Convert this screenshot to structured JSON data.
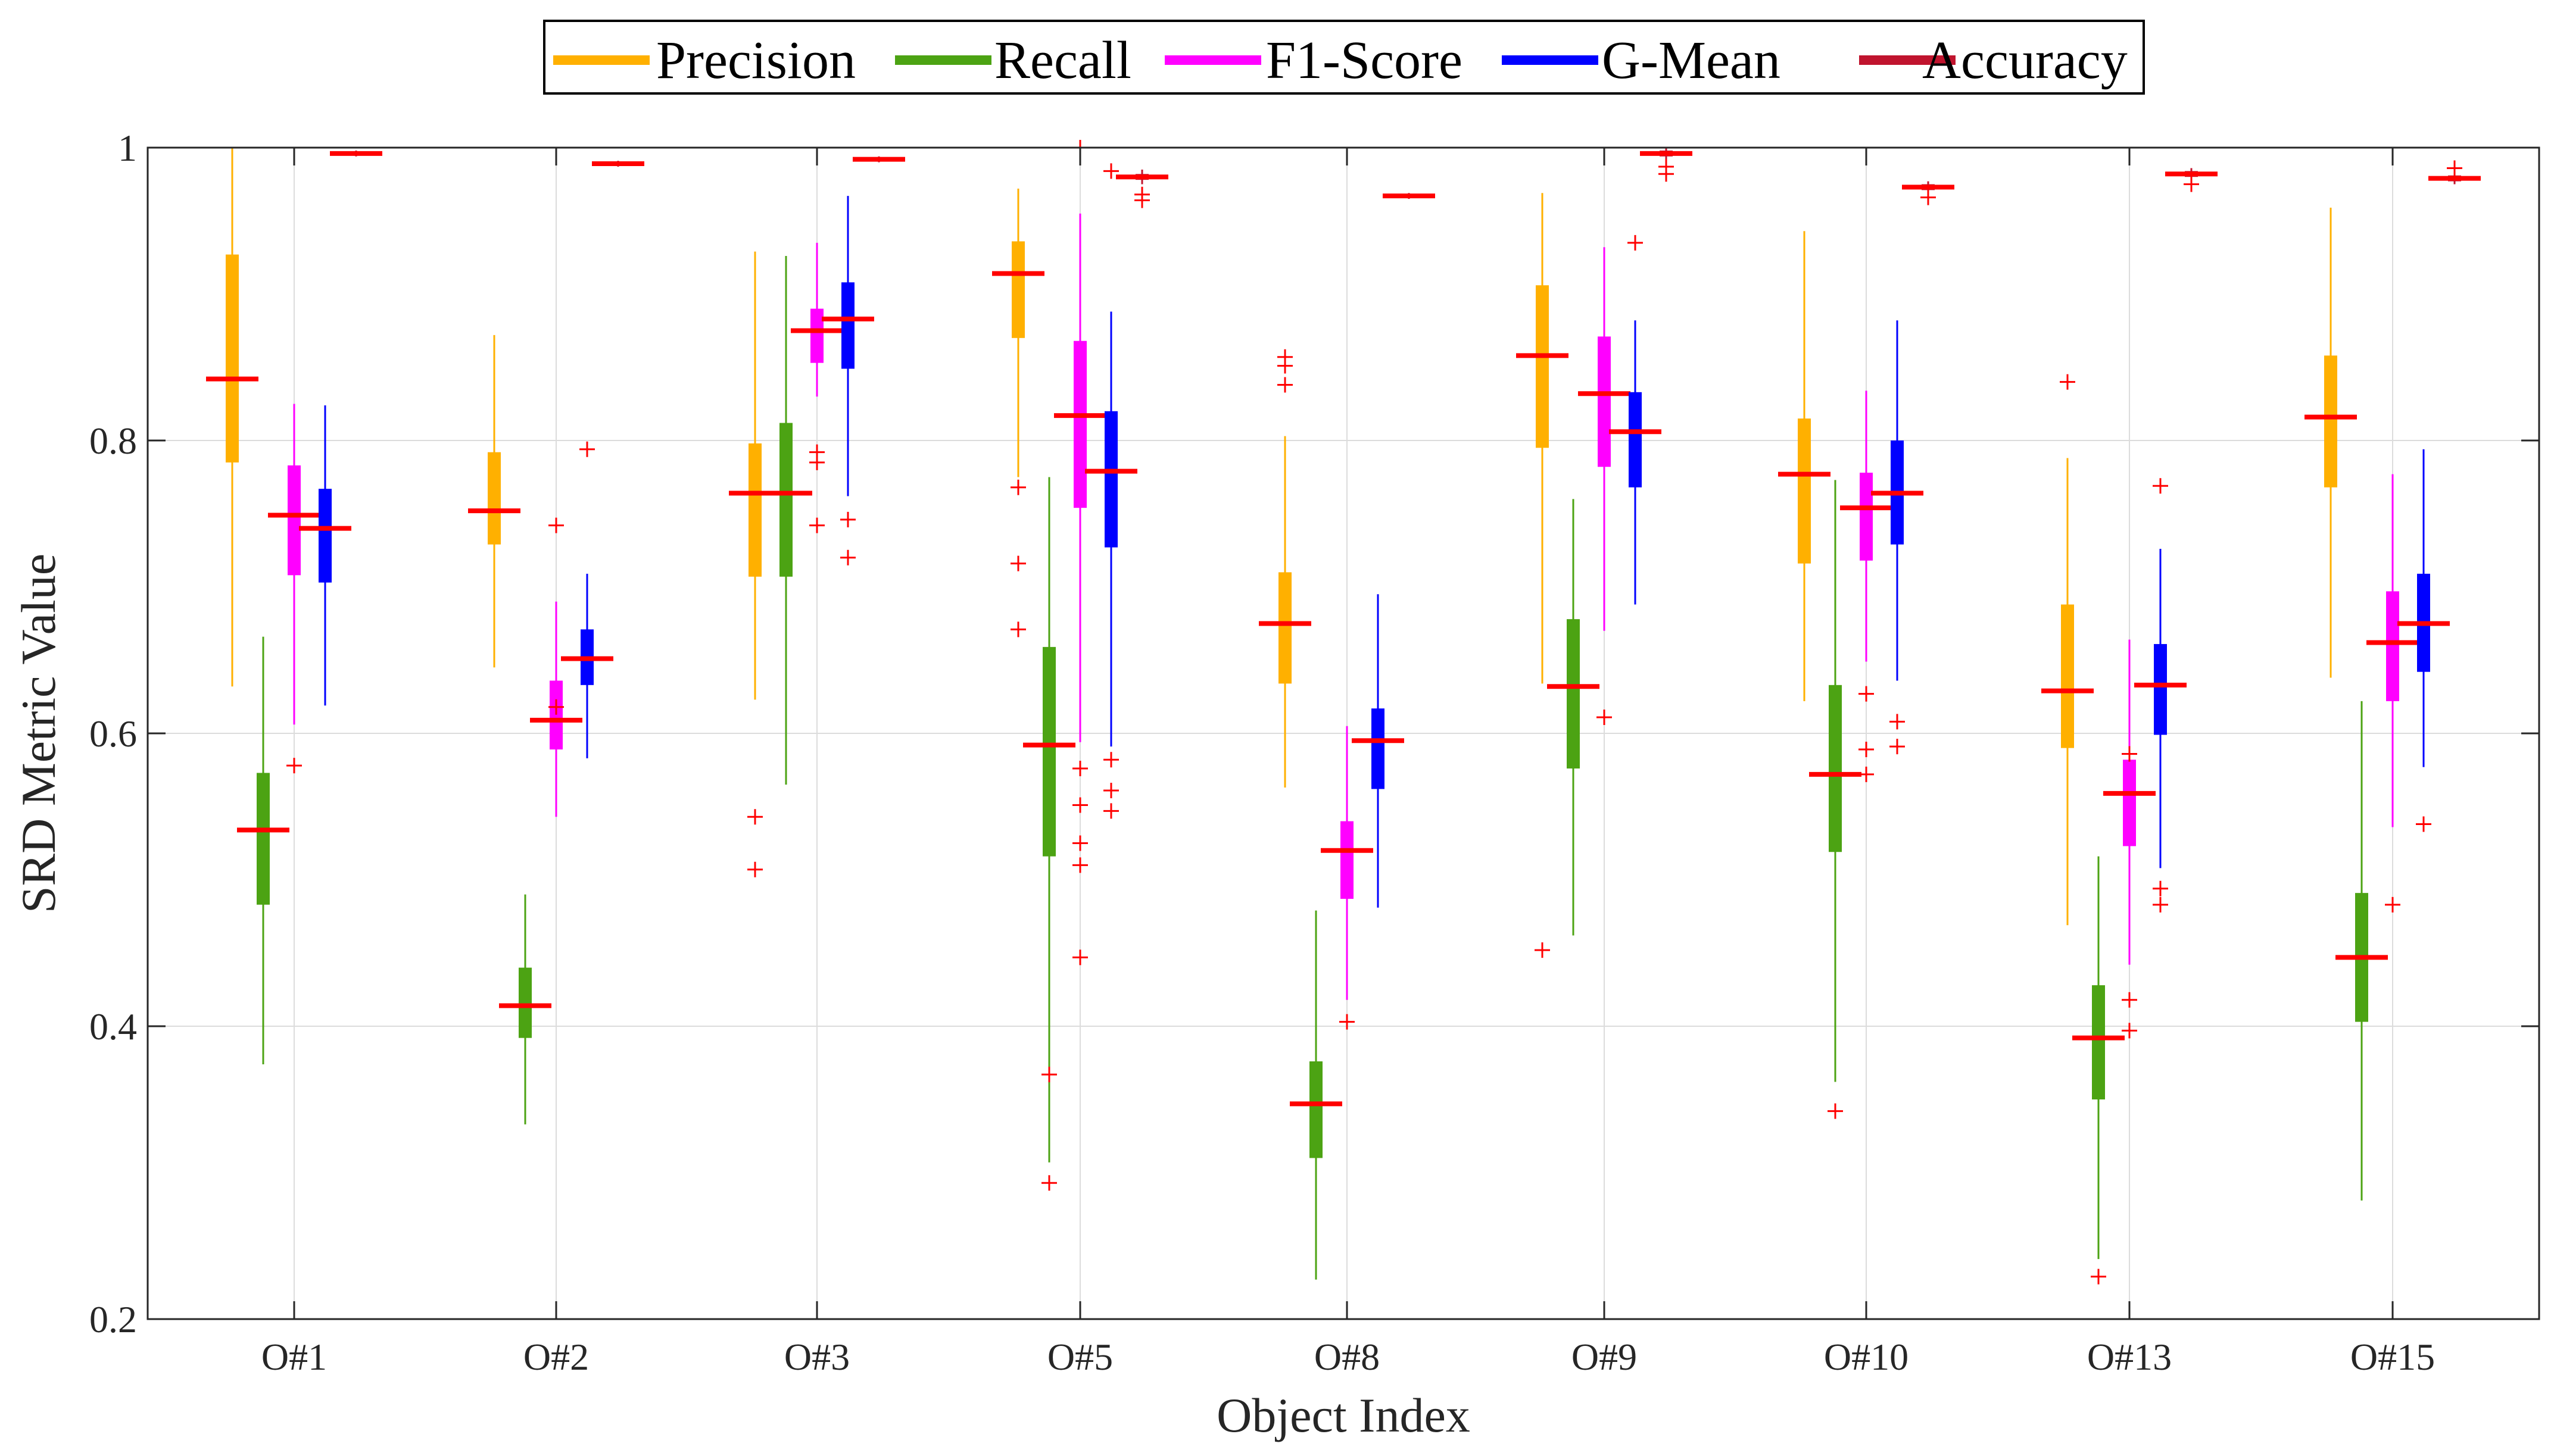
{
  "chart_data": {
    "type": "boxplot",
    "title": "",
    "xlabel": "Object Index",
    "ylabel": "SRD Metric Value",
    "ylim": [
      0.2,
      1.0
    ],
    "yticks": [
      0.2,
      0.4,
      0.6,
      0.8,
      1.0
    ],
    "ytick_labels": [
      "0.2",
      "0.4",
      "0.6",
      "0.8",
      "1"
    ],
    "grid": true,
    "legend_position": "top-center",
    "median_color": "#ff0000",
    "outlier_color": "#ff0000",
    "categories": [
      "O#1",
      "O#2",
      "O#3",
      "O#5",
      "O#8",
      "O#9",
      "O#10",
      "O#13",
      "O#15"
    ],
    "series": [
      {
        "name": "Precision",
        "color": "#ffb000",
        "boxes": [
          {
            "q1": 0.785,
            "median": 0.842,
            "q3": 0.927,
            "whisker_low": 0.632,
            "whisker_high": 1.0,
            "outliers": []
          },
          {
            "q1": 0.729,
            "median": 0.752,
            "q3": 0.792,
            "whisker_low": 0.645,
            "whisker_high": 0.872,
            "outliers": []
          },
          {
            "q1": 0.707,
            "median": 0.764,
            "q3": 0.798,
            "whisker_low": 0.623,
            "whisker_high": 0.929,
            "outliers": [
              0.543,
              0.507
            ]
          },
          {
            "q1": 0.87,
            "median": 0.914,
            "q3": 0.936,
            "whisker_low": 0.775,
            "whisker_high": 0.972,
            "outliers": [
              0.768,
              0.716,
              0.671
            ]
          },
          {
            "q1": 0.634,
            "median": 0.675,
            "q3": 0.71,
            "whisker_low": 0.563,
            "whisker_high": 0.803,
            "outliers": [
              0.857,
              0.851,
              0.838
            ]
          },
          {
            "q1": 0.795,
            "median": 0.858,
            "q3": 0.906,
            "whisker_low": 0.634,
            "whisker_high": 0.969,
            "outliers": [
              0.452
            ]
          },
          {
            "q1": 0.716,
            "median": 0.777,
            "q3": 0.815,
            "whisker_low": 0.622,
            "whisker_high": 0.943,
            "outliers": []
          },
          {
            "q1": 0.59,
            "median": 0.629,
            "q3": 0.688,
            "whisker_low": 0.469,
            "whisker_high": 0.788,
            "outliers": [
              0.84
            ]
          },
          {
            "q1": 0.768,
            "median": 0.816,
            "q3": 0.858,
            "whisker_low": 0.638,
            "whisker_high": 0.959,
            "outliers": []
          }
        ]
      },
      {
        "name": "Recall",
        "color": "#4ca313",
        "boxes": [
          {
            "q1": 0.483,
            "median": 0.534,
            "q3": 0.573,
            "whisker_low": 0.374,
            "whisker_high": 0.666,
            "outliers": []
          },
          {
            "q1": 0.392,
            "median": 0.414,
            "q3": 0.44,
            "whisker_low": 0.333,
            "whisker_high": 0.49,
            "outliers": []
          },
          {
            "q1": 0.707,
            "median": 0.764,
            "q3": 0.812,
            "whisker_low": 0.565,
            "whisker_high": 0.926,
            "outliers": []
          },
          {
            "q1": 0.516,
            "median": 0.592,
            "q3": 0.659,
            "whisker_low": 0.307,
            "whisker_high": 0.775,
            "outliers": [
              0.367,
              0.293
            ]
          },
          {
            "q1": 0.31,
            "median": 0.347,
            "q3": 0.376,
            "whisker_low": 0.227,
            "whisker_high": 0.479,
            "outliers": []
          },
          {
            "q1": 0.576,
            "median": 0.632,
            "q3": 0.678,
            "whisker_low": 0.462,
            "whisker_high": 0.76,
            "outliers": []
          },
          {
            "q1": 0.519,
            "median": 0.572,
            "q3": 0.633,
            "whisker_low": 0.362,
            "whisker_high": 0.773,
            "outliers": [
              0.342
            ]
          },
          {
            "q1": 0.35,
            "median": 0.392,
            "q3": 0.428,
            "whisker_low": 0.241,
            "whisker_high": 0.516,
            "outliers": [
              0.229
            ]
          },
          {
            "q1": 0.403,
            "median": 0.447,
            "q3": 0.491,
            "whisker_low": 0.281,
            "whisker_high": 0.622,
            "outliers": []
          }
        ]
      },
      {
        "name": "F1-Score",
        "color": "#ff00ff",
        "boxes": [
          {
            "q1": 0.708,
            "median": 0.749,
            "q3": 0.783,
            "whisker_low": 0.606,
            "whisker_high": 0.825,
            "outliers": [
              0.578
            ]
          },
          {
            "q1": 0.589,
            "median": 0.609,
            "q3": 0.636,
            "whisker_low": 0.543,
            "whisker_high": 0.69,
            "outliers": [
              0.742,
              0.618
            ]
          },
          {
            "q1": 0.853,
            "median": 0.875,
            "q3": 0.89,
            "whisker_low": 0.83,
            "whisker_high": 0.935,
            "outliers": [
              0.792,
              0.785,
              0.742
            ]
          },
          {
            "q1": 0.754,
            "median": 0.817,
            "q3": 0.868,
            "whisker_low": 0.594,
            "whisker_high": 0.955,
            "outliers": [
              1.0,
              0.576,
              0.551,
              0.525,
              0.51,
              0.447
            ]
          },
          {
            "q1": 0.487,
            "median": 0.52,
            "q3": 0.54,
            "whisker_low": 0.418,
            "whisker_high": 0.605,
            "outliers": [
              0.403
            ]
          },
          {
            "q1": 0.782,
            "median": 0.832,
            "q3": 0.871,
            "whisker_low": 0.67,
            "whisker_high": 0.932,
            "outliers": [
              0.611
            ]
          },
          {
            "q1": 0.718,
            "median": 0.754,
            "q3": 0.778,
            "whisker_low": 0.649,
            "whisker_high": 0.834,
            "outliers": [
              0.627,
              0.589,
              0.572
            ]
          },
          {
            "q1": 0.523,
            "median": 0.559,
            "q3": 0.582,
            "whisker_low": 0.442,
            "whisker_high": 0.664,
            "outliers": [
              0.586,
              0.418,
              0.397
            ]
          },
          {
            "q1": 0.622,
            "median": 0.662,
            "q3": 0.697,
            "whisker_low": 0.536,
            "whisker_high": 0.777,
            "outliers": [
              0.483
            ]
          }
        ]
      },
      {
        "name": "G-Mean",
        "color": "#0000ff",
        "boxes": [
          {
            "q1": 0.703,
            "median": 0.74,
            "q3": 0.767,
            "whisker_low": 0.619,
            "whisker_high": 0.824,
            "outliers": []
          },
          {
            "q1": 0.633,
            "median": 0.651,
            "q3": 0.671,
            "whisker_low": 0.583,
            "whisker_high": 0.709,
            "outliers": [
              0.794
            ]
          },
          {
            "q1": 0.849,
            "median": 0.883,
            "q3": 0.908,
            "whisker_low": 0.762,
            "whisker_high": 0.967,
            "outliers": [
              0.746,
              0.72
            ]
          },
          {
            "q1": 0.727,
            "median": 0.779,
            "q3": 0.82,
            "whisker_low": 0.591,
            "whisker_high": 0.888,
            "outliers": [
              0.984,
              0.582,
              0.561,
              0.547
            ]
          },
          {
            "q1": 0.562,
            "median": 0.595,
            "q3": 0.617,
            "whisker_low": 0.481,
            "whisker_high": 0.695,
            "outliers": []
          },
          {
            "q1": 0.768,
            "median": 0.806,
            "q3": 0.833,
            "whisker_low": 0.688,
            "whisker_high": 0.882,
            "outliers": [
              0.935
            ]
          },
          {
            "q1": 0.729,
            "median": 0.764,
            "q3": 0.8,
            "whisker_low": 0.636,
            "whisker_high": 0.882,
            "outliers": [
              0.608,
              0.591
            ]
          },
          {
            "q1": 0.599,
            "median": 0.633,
            "q3": 0.661,
            "whisker_low": 0.508,
            "whisker_high": 0.726,
            "outliers": [
              0.769,
              0.494,
              0.483
            ]
          },
          {
            "q1": 0.642,
            "median": 0.675,
            "q3": 0.709,
            "whisker_low": 0.577,
            "whisker_high": 0.794,
            "outliers": [
              0.538
            ]
          }
        ]
      },
      {
        "name": "Accuracy",
        "color": "#c0142e",
        "boxes": [
          {
            "q1": 0.995,
            "median": 0.996,
            "q3": 0.997,
            "whisker_low": 0.994,
            "whisker_high": 0.998,
            "outliers": []
          },
          {
            "q1": 0.988,
            "median": 0.989,
            "q3": 0.99,
            "whisker_low": 0.987,
            "whisker_high": 0.991,
            "outliers": []
          },
          {
            "q1": 0.991,
            "median": 0.992,
            "q3": 0.993,
            "whisker_low": 0.99,
            "whisker_high": 0.994,
            "outliers": []
          },
          {
            "q1": 0.978,
            "median": 0.98,
            "q3": 0.982,
            "whisker_low": 0.975,
            "whisker_high": 0.985,
            "outliers": [
              0.968,
              0.964
            ]
          },
          {
            "q1": 0.966,
            "median": 0.967,
            "q3": 0.968,
            "whisker_low": 0.965,
            "whisker_high": 0.969,
            "outliers": []
          },
          {
            "q1": 0.994,
            "median": 0.996,
            "q3": 0.998,
            "whisker_low": 0.991,
            "whisker_high": 1.0,
            "outliers": [
              0.987,
              0.982
            ]
          },
          {
            "q1": 0.971,
            "median": 0.973,
            "q3": 0.975,
            "whisker_low": 0.969,
            "whisker_high": 0.977,
            "outliers": [
              0.966
            ]
          },
          {
            "q1": 0.98,
            "median": 0.982,
            "q3": 0.984,
            "whisker_low": 0.978,
            "whisker_high": 0.986,
            "outliers": [
              0.975
            ]
          },
          {
            "q1": 0.977,
            "median": 0.979,
            "q3": 0.981,
            "whisker_low": 0.975,
            "whisker_high": 0.983,
            "outliers": [
              0.986
            ]
          }
        ]
      }
    ]
  }
}
